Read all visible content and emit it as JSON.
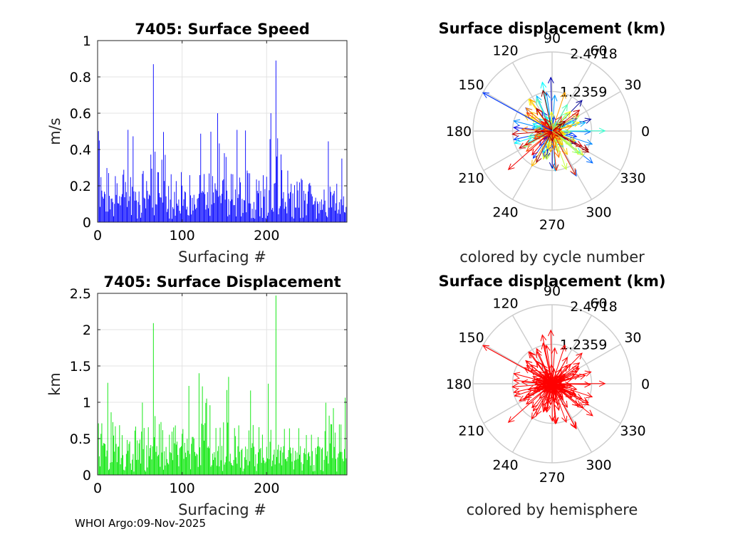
{
  "footer": "WHOI Argo:09-Nov-2025",
  "chart_data": [
    {
      "type": "bar",
      "title": "7405: Surface Speed",
      "xlabel": "Surfacing #",
      "ylabel": "m/s",
      "xlim": [
        0,
        295
      ],
      "ylim": [
        0,
        1
      ],
      "xticks": [
        0,
        100,
        200
      ],
      "yticks": [
        0,
        0.2,
        0.4,
        0.6,
        0.8,
        1
      ],
      "ytick_labels": [
        "0",
        "0.2",
        "0.4",
        "0.6",
        "0.8",
        "1"
      ],
      "grid": true,
      "color": "#0000ff",
      "bar_count": 295,
      "notable_values": [
        {
          "x": 66,
          "y": 0.87
        },
        {
          "x": 211,
          "y": 0.89
        },
        {
          "x": 142,
          "y": 0.6
        },
        {
          "x": 205,
          "y": 0.6
        }
      ]
    },
    {
      "type": "polar-arrows",
      "title": "Surface displacement (km)",
      "caption": "colored by cycle number",
      "angle_labels": [
        "0",
        "30",
        "60",
        "90",
        "120",
        "150",
        "180",
        "210",
        "240",
        "270",
        "300",
        "330"
      ],
      "radial_tick_labels": [
        "1.2359",
        "2.4718"
      ],
      "rmax": 2.4718,
      "colormap": "jet",
      "max_arrow": {
        "angle_deg": 151,
        "r": 2.47
      }
    },
    {
      "type": "bar",
      "title": "7405: Surface Displacement",
      "xlabel": "Surfacing #",
      "ylabel": "km",
      "xlim": [
        0,
        295
      ],
      "ylim": [
        0,
        2.5
      ],
      "xticks": [
        0,
        100,
        200
      ],
      "yticks": [
        0,
        0.5,
        1,
        1.5,
        2,
        2.5
      ],
      "ytick_labels": [
        "0",
        "0.5",
        "1",
        "1.5",
        "2",
        "2.5"
      ],
      "grid": true,
      "color": "#00e600",
      "bar_count": 295,
      "notable_values": [
        {
          "x": 66,
          "y": 2.09
        },
        {
          "x": 211,
          "y": 2.47
        },
        {
          "x": 120,
          "y": 1.4
        },
        {
          "x": 155,
          "y": 1.35
        }
      ]
    },
    {
      "type": "polar-arrows",
      "title": "Surface displacement (km)",
      "caption": "colored by hemisphere",
      "angle_labels": [
        "0",
        "30",
        "60",
        "90",
        "120",
        "150",
        "180",
        "210",
        "240",
        "270",
        "300",
        "330"
      ],
      "radial_tick_labels": [
        "1.2359",
        "2.4718"
      ],
      "rmax": 2.4718,
      "color": "#ff0000",
      "max_arrow": {
        "angle_deg": 151,
        "r": 2.47
      }
    }
  ]
}
